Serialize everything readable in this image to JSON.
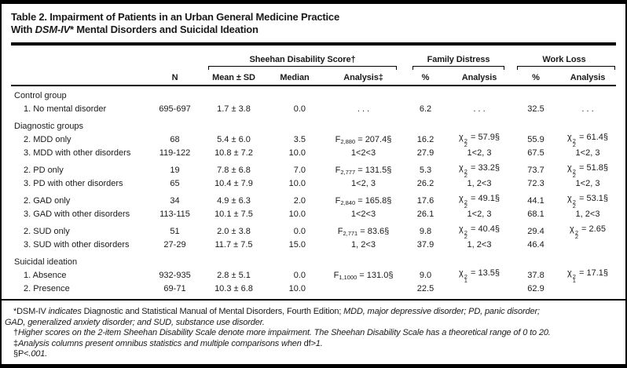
{
  "title": {
    "lines": [
      [
        {
          "t": "Table 2. Impairment of Patients in an Urban General Medicine Practice"
        }
      ],
      [
        {
          "t": "With "
        },
        {
          "t": "DSM-IV",
          "i": true
        },
        {
          "t": "* Mental Disorders and Suicidal Ideation"
        }
      ]
    ]
  },
  "header": {
    "groups": [
      {
        "label": "Sheehan Disability Score†"
      },
      {
        "label": "Family Distress"
      },
      {
        "label": "Work Loss"
      }
    ],
    "columns": [
      "N",
      "Mean ± SD",
      "Median",
      "Analysis‡",
      "%",
      "Analysis",
      "%",
      "Analysis"
    ]
  },
  "rows": [
    {
      "group": true,
      "label": "Control group"
    },
    {
      "label": "1. No mental disorder",
      "n": "695-697",
      "mean": "1.7 ± 3.8",
      "median": "0.0",
      "analysis": ". . .",
      "fam_pct": "6.2",
      "fam_an": ". . .",
      "work_pct": "32.5",
      "work_an": ". . ."
    },
    {
      "group": true,
      "label": "Diagnostic groups",
      "gap": true
    },
    {
      "label": "2. MDD only",
      "n": "68",
      "mean": "5.4 ± 6.0",
      "median": "3.5",
      "analysis": "{F:2,880} = 207.4§",
      "fam_pct": "16.2",
      "fam_an": "{chi2:2} = 57.9§",
      "work_pct": "55.9",
      "work_an": "{chi2:2} = 61.4§"
    },
    {
      "label": "3. MDD with other disorders",
      "n": "119-122",
      "mean": "10.8 ± 7.2",
      "median": "10.0",
      "analysis": "1<2<3",
      "fam_pct": "27.9",
      "fam_an": "1<2, 3",
      "work_pct": "67.5",
      "work_an": "1<2, 3"
    },
    {
      "label": "2. PD only",
      "gap": true,
      "n": "19",
      "mean": "7.8 ± 6.8",
      "median": "7.0",
      "analysis": "{F:2,777} = 131.5§",
      "fam_pct": "5.3",
      "fam_an": "{chi2:2} = 33.2§",
      "work_pct": "73.7",
      "work_an": "{chi2:2} = 51.8§"
    },
    {
      "label": "3. PD with other disorders",
      "n": "65",
      "mean": "10.4 ± 7.9",
      "median": "10.0",
      "analysis": "1<2, 3",
      "fam_pct": "26.2",
      "fam_an": "1, 2<3",
      "work_pct": "72.3",
      "work_an": "1<2, 3"
    },
    {
      "label": "2. GAD only",
      "gap": true,
      "n": "34",
      "mean": "4.9 ± 6.3",
      "median": "2.0",
      "analysis": "{F:2,840} = 165.8§",
      "fam_pct": "17.6",
      "fam_an": "{chi2:2} = 49.1§",
      "work_pct": "44.1",
      "work_an": "{chi2:2} = 53.1§"
    },
    {
      "label": "3. GAD with other disorders",
      "n": "113-115",
      "mean": "10.1 ± 7.5",
      "median": "10.0",
      "analysis": "1<2<3",
      "fam_pct": "26.1",
      "fam_an": "1<2, 3",
      "work_pct": "68.1",
      "work_an": "1, 2<3"
    },
    {
      "label": "2. SUD only",
      "gap": true,
      "n": "51",
      "mean": "2.0 ± 3.8",
      "median": "0.0",
      "analysis": "{F:2,771} = 83.6§",
      "fam_pct": "9.8",
      "fam_an": "{chi2:2} = 40.4§",
      "work_pct": "29.4",
      "work_an": "{chi2:2} = 2.65"
    },
    {
      "label": "3. SUD with other disorders",
      "n": "27-29",
      "mean": "11.7 ± 7.5",
      "median": "15.0",
      "analysis": "1, 2<3",
      "fam_pct": "37.9",
      "fam_an": "1, 2<3",
      "work_pct": "46.4",
      "work_an": ""
    },
    {
      "group": true,
      "label": "Suicidal ideation",
      "gap": true
    },
    {
      "label": "1. Absence",
      "n": "932-935",
      "mean": "2.8 ± 5.1",
      "median": "0.0",
      "analysis": "{F:1,1000} = 131.0§",
      "fam_pct": "9.0",
      "fam_an": "{chi2:1} = 13.5§",
      "work_pct": "37.8",
      "work_an": "{chi2:1} = 17.1§"
    },
    {
      "label": "2. Presence",
      "n": "69-71",
      "mean": "10.3 ± 6.8",
      "median": "10.0",
      "analysis": "",
      "fam_pct": "22.5",
      "fam_an": "",
      "work_pct": "62.9",
      "work_an": ""
    }
  ],
  "footnotes": [
    [
      {
        "t": "*DSM-IV "
      },
      {
        "t": "indicates",
        "i": true
      },
      {
        "t": " Diagnostic and Statistical Manual of Mental Disorders, Fourth Edition; "
      },
      {
        "t": "MDD, major depressive disorder; PD, panic disorder;",
        "i": true
      },
      {
        "br": true
      },
      {
        "t": "GAD, generalized anxiety disorder; and SUD, substance use disorder.",
        "i": true
      }
    ],
    [
      {
        "t": "†"
      },
      {
        "t": "Higher scores on the 2-item Sheehan Disability Scale denote more impairment. The Sheehan Disability Scale has a theoretical range of 0 to 20.",
        "i": true
      }
    ],
    [
      {
        "t": "‡"
      },
      {
        "t": "Analysis columns present omnibus statistics and multiple comparisons when ",
        "i": true
      },
      {
        "t": "df"
      },
      {
        "t": ">1.",
        "i": true
      }
    ],
    [
      {
        "t": "§P<"
      },
      {
        "t": ".001.",
        "i": true
      }
    ]
  ],
  "colors": {
    "text": "#1a1a1a",
    "rule": "#000000",
    "background": "#ffffff"
  }
}
